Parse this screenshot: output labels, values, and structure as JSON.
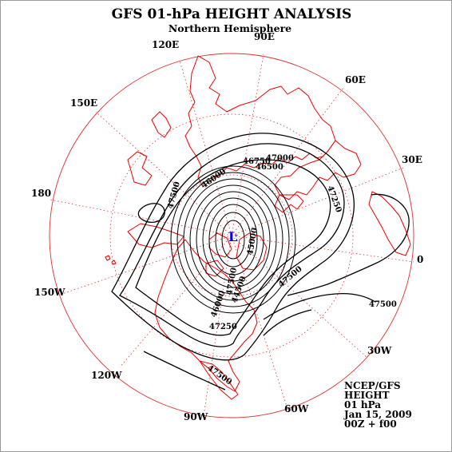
{
  "title": "GFS 01-hPa HEIGHT ANALYSIS",
  "subtitle": "Northern Hemisphere",
  "longitude_labels": {
    "lon_90e": "90E",
    "lon_120e": "120E",
    "lon_60e": "60E",
    "lon_150e": "150E",
    "lon_30e": "30E",
    "lon_180": "180",
    "lon_0": "0",
    "lon_150w": "150W",
    "lon_30w": "30W",
    "lon_120w": "120W",
    "lon_90w": "90W",
    "lon_60w": "60W"
  },
  "contour_labels": {
    "c1": "47000",
    "c2": "46750",
    "c3": "46500",
    "c4": "46000",
    "c5": "47250",
    "c6": "47500",
    "c7": "47500",
    "c8": "47500",
    "c9": "47500",
    "c10": "47500",
    "c11": "47250",
    "c12": "46000",
    "c13": "45000",
    "c14": "44500"
  },
  "low_center": "L",
  "info_block": {
    "line1": "NCEP/GFS",
    "line2": "HEIGHT",
    "line3": "01 hPa",
    "line4": "Jan 15, 2009",
    "line5": "00Z + f00"
  },
  "colors": {
    "map_lines": "#ee0000",
    "contours": "#000000",
    "low_center": "#0000ee"
  }
}
